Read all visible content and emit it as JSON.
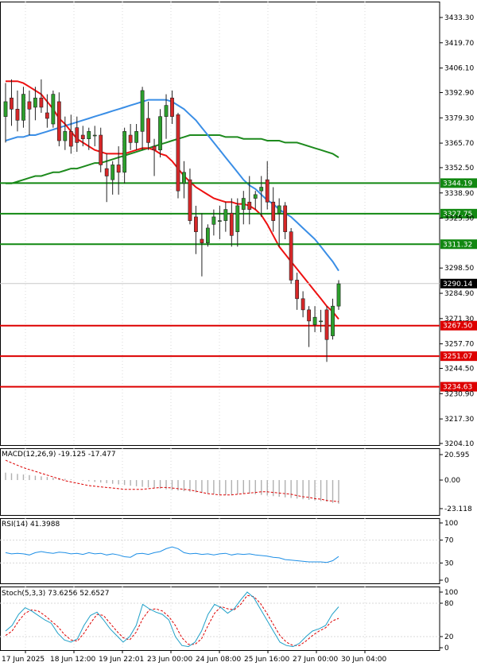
{
  "colors": {
    "bull": "#2ca02c",
    "bear": "#d62728",
    "wick": "#222222",
    "ma_red": "#ee1111",
    "ma_blue": "#3a8ee6",
    "ma_green": "#1d8a1d",
    "support": "#dd0000",
    "resistance": "#118811",
    "current": "#000000",
    "macd_signal": "#dd0000",
    "macd_hist": "#b0b0b0",
    "rsi": "#1e8fe6",
    "stoch_main": "#1fa0c8",
    "stoch_signal": "#dd0000",
    "grid": "#d8d8d8"
  },
  "chart_data": [
    {
      "type": "candlestick",
      "name": "main",
      "ylim": [
        3204.1,
        3433.3
      ],
      "yticks": [
        "3433.30",
        "3419.70",
        "3406.10",
        "3392.90",
        "3379.30",
        "3365.70",
        "3352.50",
        "3338.90",
        "3325.30",
        "3298.50",
        "3284.90",
        "3271.30",
        "3257.70",
        "3244.50",
        "3230.90",
        "3217.30",
        "3204.10"
      ],
      "x_labels": [
        "17 Jun 2025",
        "18 Jun 12:00",
        "19 Jun 22:01",
        "23 Jun 00:00",
        "24 Jun 08:00",
        "25 Jun 16:00",
        "27 Jun 00:00",
        "30 Jun 04:00"
      ],
      "levels": [
        {
          "value": 3344.19,
          "label": "3344.19",
          "kind": "resistance"
        },
        {
          "value": 3327.75,
          "label": "3327.75",
          "kind": "resistance"
        },
        {
          "value": 3311.32,
          "label": "3311.32",
          "kind": "resistance"
        },
        {
          "value": 3267.5,
          "label": "3267.50",
          "kind": "support"
        },
        {
          "value": 3251.07,
          "label": "3251.07",
          "kind": "support"
        },
        {
          "value": 3234.63,
          "label": "3234.63",
          "kind": "support"
        }
      ],
      "current_price": {
        "value": 3290.14,
        "label": "3290.14"
      },
      "candles": [
        {
          "o": 3380,
          "h": 3398,
          "l": 3366,
          "c": 3388
        },
        {
          "o": 3390,
          "h": 3400,
          "l": 3375,
          "c": 3384
        },
        {
          "o": 3384,
          "h": 3394,
          "l": 3372,
          "c": 3378
        },
        {
          "o": 3378,
          "h": 3396,
          "l": 3374,
          "c": 3392
        },
        {
          "o": 3388,
          "h": 3394,
          "l": 3370,
          "c": 3384
        },
        {
          "o": 3385,
          "h": 3396,
          "l": 3378,
          "c": 3390
        },
        {
          "o": 3390,
          "h": 3400,
          "l": 3382,
          "c": 3385
        },
        {
          "o": 3382,
          "h": 3392,
          "l": 3374,
          "c": 3379
        },
        {
          "o": 3376,
          "h": 3394,
          "l": 3374,
          "c": 3392
        },
        {
          "o": 3388,
          "h": 3393,
          "l": 3364,
          "c": 3367
        },
        {
          "o": 3367,
          "h": 3380,
          "l": 3362,
          "c": 3372
        },
        {
          "o": 3372,
          "h": 3381,
          "l": 3360,
          "c": 3364
        },
        {
          "o": 3374,
          "h": 3380,
          "l": 3361,
          "c": 3366
        },
        {
          "o": 3370,
          "h": 3375,
          "l": 3364,
          "c": 3368
        },
        {
          "o": 3368,
          "h": 3374,
          "l": 3362,
          "c": 3372
        },
        {
          "o": 3370,
          "h": 3375,
          "l": 3364,
          "c": 3370
        },
        {
          "o": 3370,
          "h": 3374,
          "l": 3350,
          "c": 3354
        },
        {
          "o": 3352,
          "h": 3360,
          "l": 3334,
          "c": 3348
        },
        {
          "o": 3346,
          "h": 3356,
          "l": 3338,
          "c": 3354
        },
        {
          "o": 3354,
          "h": 3364,
          "l": 3338,
          "c": 3350
        },
        {
          "o": 3350,
          "h": 3374,
          "l": 3344,
          "c": 3372
        },
        {
          "o": 3370,
          "h": 3376,
          "l": 3362,
          "c": 3366
        },
        {
          "o": 3366,
          "h": 3376,
          "l": 3362,
          "c": 3372
        },
        {
          "o": 3372,
          "h": 3396,
          "l": 3362,
          "c": 3394
        },
        {
          "o": 3379,
          "h": 3388,
          "l": 3362,
          "c": 3366
        },
        {
          "o": 3364,
          "h": 3368,
          "l": 3348,
          "c": 3362
        },
        {
          "o": 3362,
          "h": 3384,
          "l": 3358,
          "c": 3380
        },
        {
          "o": 3380,
          "h": 3392,
          "l": 3368,
          "c": 3386
        },
        {
          "o": 3390,
          "h": 3394,
          "l": 3376,
          "c": 3380
        },
        {
          "o": 3381,
          "h": 3382,
          "l": 3336,
          "c": 3340
        },
        {
          "o": 3344,
          "h": 3356,
          "l": 3336,
          "c": 3350
        },
        {
          "o": 3346,
          "h": 3352,
          "l": 3322,
          "c": 3324
        },
        {
          "o": 3326,
          "h": 3332,
          "l": 3306,
          "c": 3318
        },
        {
          "o": 3314,
          "h": 3328,
          "l": 3294,
          "c": 3312
        },
        {
          "o": 3312,
          "h": 3322,
          "l": 3310,
          "c": 3320
        },
        {
          "o": 3322,
          "h": 3330,
          "l": 3316,
          "c": 3326
        },
        {
          "o": 3324,
          "h": 3332,
          "l": 3314,
          "c": 3324
        },
        {
          "o": 3324,
          "h": 3334,
          "l": 3318,
          "c": 3330
        },
        {
          "o": 3328,
          "h": 3336,
          "l": 3310,
          "c": 3316
        },
        {
          "o": 3318,
          "h": 3336,
          "l": 3310,
          "c": 3332
        },
        {
          "o": 3330,
          "h": 3340,
          "l": 3322,
          "c": 3336
        },
        {
          "o": 3334,
          "h": 3348,
          "l": 3322,
          "c": 3330
        },
        {
          "o": 3336,
          "h": 3340,
          "l": 3330,
          "c": 3338
        },
        {
          "o": 3340,
          "h": 3348,
          "l": 3326,
          "c": 3342
        },
        {
          "o": 3346,
          "h": 3356,
          "l": 3330,
          "c": 3334
        },
        {
          "o": 3334,
          "h": 3342,
          "l": 3318,
          "c": 3324
        },
        {
          "o": 3328,
          "h": 3336,
          "l": 3310,
          "c": 3332
        },
        {
          "o": 3332,
          "h": 3334,
          "l": 3314,
          "c": 3318
        },
        {
          "o": 3318,
          "h": 3320,
          "l": 3290,
          "c": 3292
        },
        {
          "o": 3292,
          "h": 3296,
          "l": 3276,
          "c": 3282
        },
        {
          "o": 3282,
          "h": 3286,
          "l": 3272,
          "c": 3276
        },
        {
          "o": 3276,
          "h": 3278,
          "l": 3256,
          "c": 3270
        },
        {
          "o": 3268,
          "h": 3278,
          "l": 3264,
          "c": 3272
        },
        {
          "o": 3270,
          "h": 3276,
          "l": 3264,
          "c": 3270
        },
        {
          "o": 3276,
          "h": 3278,
          "l": 3248,
          "c": 3260
        },
        {
          "o": 3262,
          "h": 3282,
          "l": 3260,
          "c": 3278
        },
        {
          "o": 3278,
          "h": 3292,
          "l": 3276,
          "c": 3290
        }
      ],
      "ma_red": [
        3399,
        3399,
        3399,
        3398,
        3396,
        3394,
        3392,
        3388,
        3384,
        3379,
        3376,
        3372,
        3368,
        3366,
        3364,
        3362,
        3361,
        3360,
        3360,
        3360,
        3360,
        3361,
        3362,
        3363,
        3363,
        3362,
        3360,
        3359,
        3356,
        3352,
        3348,
        3345,
        3342,
        3340,
        3338,
        3336,
        3335,
        3334,
        3334,
        3333,
        3333,
        3332,
        3330,
        3327,
        3322,
        3316,
        3310,
        3306,
        3302,
        3298,
        3294,
        3290,
        3286,
        3282,
        3278,
        3275,
        3271
      ],
      "ma_blue": [
        3367,
        3368,
        3369,
        3369,
        3370,
        3370,
        3371,
        3372,
        3373,
        3374,
        3375,
        3376,
        3377,
        3378,
        3379,
        3380,
        3381,
        3382,
        3383,
        3384,
        3385,
        3386,
        3387,
        3388,
        3389,
        3389,
        3389,
        3389,
        3388,
        3386,
        3384,
        3381,
        3378,
        3374,
        3370,
        3366,
        3362,
        3358,
        3354,
        3350,
        3346,
        3343,
        3341,
        3338,
        3335,
        3333,
        3330,
        3328,
        3326,
        3323,
        3320,
        3317,
        3314,
        3310,
        3306,
        3302,
        3297
      ],
      "ma_green": [
        3344,
        3344,
        3345,
        3346,
        3347,
        3348,
        3348,
        3349,
        3350,
        3350,
        3351,
        3352,
        3352,
        3353,
        3354,
        3355,
        3355,
        3356,
        3357,
        3358,
        3359,
        3360,
        3361,
        3362,
        3363,
        3364,
        3365,
        3366,
        3367,
        3368,
        3369,
        3370,
        3370,
        3370,
        3370,
        3370,
        3370,
        3369,
        3369,
        3369,
        3368,
        3368,
        3368,
        3368,
        3367,
        3367,
        3367,
        3366,
        3366,
        3366,
        3365,
        3364,
        3363,
        3362,
        3361,
        3360,
        3358
      ]
    },
    {
      "type": "macd",
      "name": "MACD",
      "label": "MACD(12,26,9) -19.125 -17.477",
      "ylim": [
        -23.118,
        20.595
      ],
      "yticks": [
        "20.595",
        "0.00",
        "-23.118"
      ],
      "histogram": [
        6,
        5.5,
        5,
        4.5,
        4,
        3.5,
        3,
        2.5,
        2,
        1.5,
        1,
        0.5,
        0,
        -0.5,
        -1,
        -1.5,
        -2,
        -2.5,
        -3,
        -3.5,
        -4,
        -4.5,
        -5,
        -5.5,
        -6,
        -6.5,
        -7,
        -7.5,
        -8,
        -8.5,
        -9,
        -9.5,
        -10,
        -10.5,
        -11,
        -11.5,
        -12,
        -12,
        -12,
        -11.5,
        -11,
        -11,
        -11.5,
        -12,
        -12.5,
        -13,
        -13.5,
        -14,
        -14.5,
        -15,
        -15.5,
        -16,
        -16.5,
        -17,
        -17.5,
        -18.5,
        -19.125
      ],
      "signal": [
        16,
        14,
        12,
        10,
        8.5,
        7,
        5.5,
        4,
        2.5,
        1,
        -0.5,
        -1.5,
        -2.5,
        -3.5,
        -4.5,
        -5,
        -5.5,
        -6,
        -6.5,
        -7,
        -7.5,
        -7.5,
        -7.5,
        -7.5,
        -7,
        -6.5,
        -6,
        -6,
        -6.5,
        -7,
        -7.5,
        -8,
        -9,
        -10,
        -11,
        -11.5,
        -12,
        -12,
        -12,
        -11.5,
        -11,
        -10.5,
        -10,
        -9.5,
        -9.5,
        -10,
        -10.5,
        -11,
        -11.5,
        -12.5,
        -13.5,
        -14,
        -15,
        -15.5,
        -16.5,
        -17,
        -17.477
      ]
    },
    {
      "type": "line",
      "name": "RSI",
      "label": "RSI(14) 41.3988",
      "ylim": [
        0,
        100
      ],
      "yticks": [
        "100",
        "70",
        "30",
        "0"
      ],
      "values": [
        48,
        46,
        47,
        46,
        44,
        48,
        50,
        48,
        47,
        49,
        48,
        46,
        47,
        45,
        48,
        46,
        47,
        44,
        46,
        44,
        41,
        40,
        46,
        47,
        45,
        48,
        50,
        55,
        58,
        55,
        48,
        46,
        47,
        45,
        46,
        44,
        46,
        47,
        44,
        46,
        45,
        46,
        44,
        43,
        42,
        40,
        39,
        36,
        35,
        34,
        33,
        32,
        32,
        32,
        31,
        34,
        41.3988
      ]
    },
    {
      "type": "line",
      "name": "Stoch",
      "label": "Stoch(5,3,3) 73.6256 52.6527",
      "ylim": [
        0,
        100
      ],
      "yticks": [
        "100",
        "80",
        "20",
        "0"
      ],
      "main": [
        30,
        40,
        60,
        72,
        66,
        58,
        50,
        44,
        26,
        14,
        10,
        16,
        40,
        58,
        64,
        50,
        34,
        22,
        10,
        20,
        40,
        78,
        70,
        64,
        60,
        50,
        20,
        4,
        2,
        10,
        30,
        60,
        78,
        72,
        62,
        70,
        86,
        100,
        90,
        70,
        50,
        30,
        10,
        4,
        2,
        8,
        20,
        30,
        34,
        40,
        60,
        73.6256
      ],
      "signal": [
        22,
        30,
        48,
        62,
        68,
        66,
        58,
        48,
        38,
        24,
        14,
        12,
        26,
        44,
        60,
        58,
        44,
        30,
        18,
        14,
        28,
        52,
        68,
        70,
        66,
        56,
        40,
        18,
        6,
        6,
        16,
        40,
        62,
        74,
        70,
        68,
        78,
        94,
        92,
        80,
        62,
        42,
        22,
        10,
        4,
        4,
        12,
        22,
        30,
        36,
        48,
        52.6527
      ]
    }
  ]
}
